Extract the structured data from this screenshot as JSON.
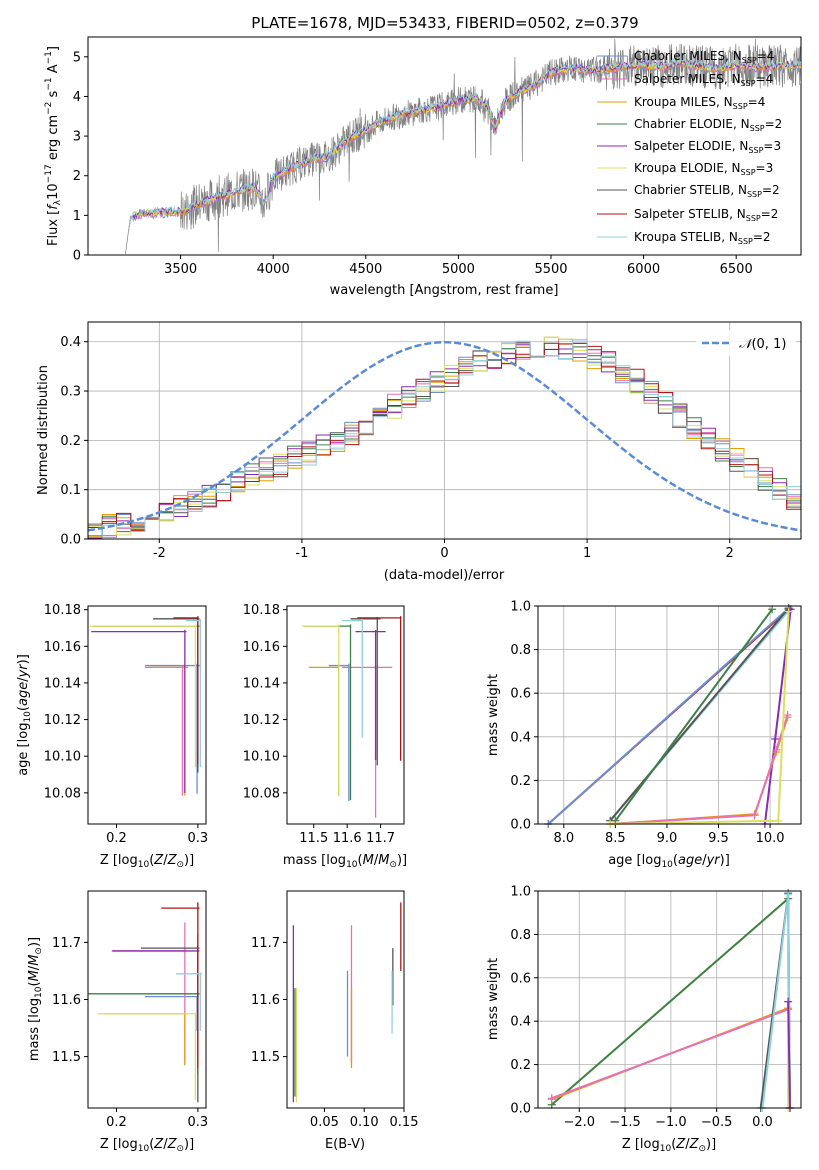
{
  "figure": {
    "title": "PLATE=1678, MJD=53433, FIBERID=0502, z=0.379"
  },
  "colors": {
    "chabrier_miles": "#6c8fd0",
    "salpeter_miles": "#e86fb5",
    "kroupa_miles": "#e0a000",
    "chabrier_elodie": "#3f7f4a",
    "salpeter_elodie": "#8b2bb0",
    "kroupa_elodie": "#d8e060",
    "chabrier_stelib": "#555555",
    "salpeter_stelib": "#b01515",
    "kroupa_stelib": "#8fd0dc",
    "normal_curve": "#5b8bd8",
    "grid": "#b0b0b0"
  },
  "chart_data": [
    {
      "id": "spectrum",
      "type": "line",
      "xlabel": "wavelength [Angstrom, rest frame]",
      "ylabel": "Flux [f_λ 10^-17 erg cm^-2 s^-1 A^-1]",
      "xlim": [
        3000,
        6850
      ],
      "ylim": [
        0,
        5.5
      ],
      "xticks": [
        3500,
        4000,
        4500,
        5000,
        5500,
        6000,
        6500
      ],
      "yticks": [
        0,
        1,
        2,
        3,
        4,
        5
      ],
      "grid": false,
      "legend": "top-right",
      "legend_entries": [
        "Chabrier MILES, N_SSP=4",
        "Salpeter MILES, N_SSP=4",
        "Kroupa MILES, N_SSP=4",
        "Chabrier ELODIE, N_SSP=2",
        "Salpeter ELODIE, N_SSP=3",
        "Kroupa ELODIE, N_SSP=3",
        "Chabrier STELIB, N_SSP=2",
        "Salpeter STELIB, N_SSP=2",
        "Kroupa STELIB, N_SSP=2"
      ],
      "continuum_anchors": [
        [
          3200,
          0
        ],
        [
          3230,
          0.95
        ],
        [
          3300,
          1.05
        ],
        [
          3450,
          1.08
        ],
        [
          3520,
          1.1
        ],
        [
          3600,
          1.3
        ],
        [
          3700,
          1.45
        ],
        [
          3800,
          1.6
        ],
        [
          3900,
          1.7
        ],
        [
          3950,
          1.3
        ],
        [
          4000,
          1.95
        ],
        [
          4100,
          2.2
        ],
        [
          4200,
          2.4
        ],
        [
          4300,
          2.5
        ],
        [
          4400,
          2.9
        ],
        [
          4500,
          3.15
        ],
        [
          4600,
          3.4
        ],
        [
          4700,
          3.55
        ],
        [
          4800,
          3.65
        ],
        [
          4900,
          3.75
        ],
        [
          5000,
          3.9
        ],
        [
          5100,
          3.95
        ],
        [
          5150,
          3.75
        ],
        [
          5200,
          3.2
        ],
        [
          5250,
          3.85
        ],
        [
          5300,
          4.05
        ],
        [
          5400,
          4.25
        ],
        [
          5500,
          4.6
        ],
        [
          5600,
          4.7
        ],
        [
          5700,
          4.65
        ],
        [
          5800,
          4.7
        ],
        [
          5900,
          4.75
        ],
        [
          6000,
          4.8
        ],
        [
          6100,
          4.75
        ],
        [
          6200,
          4.85
        ],
        [
          6300,
          4.75
        ],
        [
          6400,
          4.7
        ],
        [
          6500,
          4.8
        ],
        [
          6600,
          4.75
        ],
        [
          6700,
          4.75
        ],
        [
          6850,
          4.8
        ]
      ]
    },
    {
      "id": "residuals",
      "type": "histogram",
      "xlabel": "(data-model)/error",
      "ylabel": "Normed distribution",
      "xlim": [
        -2.5,
        2.5
      ],
      "ylim": [
        0,
        0.44
      ],
      "xticks": [
        -2,
        -1,
        0,
        1,
        2
      ],
      "yticks": [
        0.0,
        0.1,
        0.2,
        0.3,
        0.4
      ],
      "grid": true,
      "legend": "top-right",
      "curve_label": "N(0,1)",
      "bin_width": 0.1,
      "bin_start": -2.5,
      "base_values": [
        0.02,
        0.025,
        0.03,
        0.035,
        0.045,
        0.055,
        0.065,
        0.075,
        0.085,
        0.1,
        0.115,
        0.13,
        0.14,
        0.15,
        0.165,
        0.175,
        0.19,
        0.2,
        0.215,
        0.23,
        0.25,
        0.27,
        0.285,
        0.3,
        0.315,
        0.33,
        0.345,
        0.36,
        0.37,
        0.38,
        0.385,
        0.39,
        0.39,
        0.385,
        0.38,
        0.37,
        0.355,
        0.34,
        0.32,
        0.3,
        0.275,
        0.25,
        0.225,
        0.2,
        0.18,
        0.16,
        0.14,
        0.12,
        0.1,
        0.085,
        0.07,
        0.06,
        0.05,
        0.045,
        0.04,
        0.035
      ]
    },
    {
      "id": "age_vs_Z",
      "type": "errorbar",
      "xlabel": "Z [log10(Z/Z⊙)]",
      "ylabel": "age [log10(age/yr)]",
      "xlim": [
        0.165,
        0.31
      ],
      "ylim": [
        10.063,
        10.182
      ],
      "xticks": [
        0.2,
        0.3
      ],
      "xticklabels": [
        "0.2",
        "0.3"
      ],
      "yticks": [
        10.08,
        10.1,
        10.12,
        10.14,
        10.16,
        10.18
      ],
      "grid": false,
      "points": [
        {
          "series": "chabrier_miles",
          "x": 0.299,
          "xerr": [
            0.064,
            0.004
          ],
          "y": 10.1495,
          "yerr": [
            0.07,
            0.001
          ]
        },
        {
          "series": "salpeter_miles",
          "x": 0.281,
          "xerr": [
            0.046,
            0.004
          ],
          "y": 10.1485,
          "yerr": [
            0.07,
            0.001
          ]
        },
        {
          "series": "kroupa_miles",
          "x": 0.284,
          "xerr": [
            0.044,
            0.004
          ],
          "y": 10.1485,
          "yerr": [
            0.07,
            0.001
          ]
        },
        {
          "series": "chabrier_elodie",
          "x": 0.3,
          "xerr": [
            0.13,
            0.002
          ],
          "y": 10.171,
          "yerr": [
            0.08,
            0.001
          ]
        },
        {
          "series": "salpeter_elodie",
          "x": 0.284,
          "xerr": [
            0.115,
            0.002
          ],
          "y": 10.168,
          "yerr": [
            0.088,
            0.001
          ]
        },
        {
          "series": "kroupa_elodie",
          "x": 0.297,
          "xerr": [
            0.13,
            0.003
          ],
          "y": 10.171,
          "yerr": [
            0.077,
            0.001
          ]
        },
        {
          "series": "chabrier_stelib",
          "x": 0.3,
          "xerr": [
            0.055,
            0.002
          ],
          "y": 10.175,
          "yerr": [
            0.083,
            0.001
          ]
        },
        {
          "series": "salpeter_stelib",
          "x": 0.3,
          "xerr": [
            0.03,
            0.001
          ],
          "y": 10.1755,
          "yerr": [
            0.08,
            0.001
          ]
        },
        {
          "series": "kroupa_stelib",
          "x": 0.303,
          "xerr": [
            0.018,
            0.001
          ],
          "y": 10.174,
          "yerr": [
            0.08,
            0.001
          ]
        }
      ]
    },
    {
      "id": "age_vs_mass",
      "type": "errorbar",
      "xlabel": "mass [log10(M/M⊙)]",
      "ylabel": "",
      "xlim": [
        11.42,
        11.77
      ],
      "ylim": [
        10.063,
        10.182
      ],
      "xticks": [
        11.5,
        11.6,
        11.7
      ],
      "xticklabels": [
        "11.5",
        "11.6",
        "11.7"
      ],
      "yticks": [
        10.08,
        10.1,
        10.12,
        10.14,
        10.16,
        10.18
      ],
      "grid": false,
      "points": [
        {
          "series": "chabrier_miles",
          "x": 11.605,
          "xerr": [
            0.06,
            0.002
          ],
          "y": 10.1495,
          "yerr": [
            0.074,
            0.001
          ]
        },
        {
          "series": "salpeter_miles",
          "x": 11.685,
          "xerr": [
            0.1,
            0.05
          ],
          "y": 10.1485,
          "yerr": [
            0.082,
            0.001
          ]
        },
        {
          "series": "kroupa_miles",
          "x": 11.575,
          "xerr": [
            0.09,
            0.002
          ],
          "y": 10.1485,
          "yerr": [
            0.07,
            0.001
          ]
        },
        {
          "series": "chabrier_elodie",
          "x": 11.61,
          "xerr": [
            0.14,
            0.002
          ],
          "y": 10.171,
          "yerr": [
            0.095,
            0.001
          ]
        },
        {
          "series": "salpeter_elodie",
          "x": 11.685,
          "xerr": [
            0.06,
            0.03
          ],
          "y": 10.168,
          "yerr": [
            0.07,
            0.001
          ]
        },
        {
          "series": "kroupa_elodie",
          "x": 11.575,
          "xerr": [
            0.11,
            0.002
          ],
          "y": 10.171,
          "yerr": [
            0.092,
            0.001
          ]
        },
        {
          "series": "chabrier_stelib",
          "x": 11.69,
          "xerr": [
            0.08,
            0.01
          ],
          "y": 10.175,
          "yerr": [
            0.08,
            0.001
          ]
        },
        {
          "series": "salpeter_stelib",
          "x": 11.76,
          "xerr": [
            0.13,
            0.002
          ],
          "y": 10.1755,
          "yerr": [
            0.078,
            0.001
          ]
        },
        {
          "series": "kroupa_stelib",
          "x": 11.645,
          "xerr": [
            0.06,
            0.002
          ],
          "y": 10.174,
          "yerr": [
            0.064,
            0.001
          ]
        }
      ]
    },
    {
      "id": "massweight_vs_age",
      "type": "line",
      "xlabel": "age [log10(age/yr)]",
      "ylabel": "mass weight",
      "xlim": [
        7.75,
        10.3
      ],
      "ylim": [
        0,
        1
      ],
      "xticks": [
        8.0,
        8.5,
        9.0,
        9.5,
        10.0
      ],
      "xticklabels": [
        "8.0",
        "8.5",
        "9.0",
        "9.5",
        "10.0"
      ],
      "yticks": [
        0.0,
        0.2,
        0.4,
        0.6,
        0.8,
        1.0
      ],
      "grid": true,
      "series": [
        {
          "series": "salpeter_stelib",
          "x": [
            7.85,
            10.18
          ],
          "y": [
            0.0,
            0.985
          ]
        },
        {
          "series": "chabrier_miles",
          "x": [
            7.85,
            10.18
          ],
          "y": [
            0.0,
            0.99
          ]
        },
        {
          "series": "kroupa_stelib",
          "x": [
            8.45,
            10.19
          ],
          "y": [
            0.015,
            0.985
          ]
        },
        {
          "series": "chabrier_stelib",
          "x": [
            8.45,
            10.18
          ],
          "y": [
            0.015,
            0.99
          ]
        },
        {
          "series": "chabrier_elodie",
          "x": [
            8.5,
            10.02
          ],
          "y": [
            0.015,
            0.985
          ]
        },
        {
          "series": "salpeter_elodie",
          "x": [
            9.95,
            10.05,
            10.2
          ],
          "y": [
            0.0,
            0.39,
            0.985
          ]
        },
        {
          "series": "kroupa_miles",
          "x": [
            8.45,
            9.85,
            10.06,
            10.17
          ],
          "y": [
            0.0,
            0.045,
            0.33,
            0.49
          ]
        },
        {
          "series": "salpeter_miles",
          "x": [
            8.45,
            9.85,
            10.06,
            10.17
          ],
          "y": [
            0.0,
            0.04,
            0.34,
            0.5
          ]
        },
        {
          "series": "kroupa_elodie",
          "x": [
            8.45,
            10.08,
            10.18
          ],
          "y": [
            0.0,
            0.015,
            0.975
          ]
        }
      ]
    },
    {
      "id": "mass_vs_Z",
      "type": "errorbar",
      "xlabel": "Z [log10(Z/Z⊙)]",
      "ylabel": "mass [log10(M/M⊙)]",
      "xlim": [
        0.165,
        0.31
      ],
      "ylim": [
        11.41,
        11.79
      ],
      "xticks": [
        0.2,
        0.3
      ],
      "xticklabels": [
        "0.2",
        "0.3"
      ],
      "yticks": [
        11.5,
        11.6,
        11.7
      ],
      "grid": false,
      "points": [
        {
          "series": "chabrier_miles",
          "x": 0.299,
          "xerr": [
            0.064,
            0.002
          ],
          "y": 11.605,
          "yerr": [
            0.06,
            0.001
          ]
        },
        {
          "series": "salpeter_miles",
          "x": 0.284,
          "xerr": [
            0.09,
            0.002
          ],
          "y": 11.685,
          "yerr": [
            0.2,
            0.05
          ]
        },
        {
          "series": "kroupa_miles",
          "x": 0.284,
          "xerr": [
            0.1,
            0.002
          ],
          "y": 11.575,
          "yerr": [
            0.09,
            0.002
          ]
        },
        {
          "series": "chabrier_elodie",
          "x": 0.3,
          "xerr": [
            0.14,
            0.002
          ],
          "y": 11.61,
          "yerr": [
            0.14,
            0.002
          ]
        },
        {
          "series": "salpeter_elodie",
          "x": 0.3,
          "xerr": [
            0.105,
            0.002
          ],
          "y": 11.685,
          "yerr": [
            0.06,
            0.03
          ]
        },
        {
          "series": "kroupa_elodie",
          "x": 0.297,
          "xerr": [
            0.12,
            0.002
          ],
          "y": 11.575,
          "yerr": [
            0.15,
            0.002
          ]
        },
        {
          "series": "chabrier_stelib",
          "x": 0.3,
          "xerr": [
            0.07,
            0.002
          ],
          "y": 11.69,
          "yerr": [
            0.27,
            0.002
          ]
        },
        {
          "series": "salpeter_stelib",
          "x": 0.3,
          "xerr": [
            0.045,
            0.002
          ],
          "y": 11.76,
          "yerr": [
            0.28,
            0.01
          ]
        },
        {
          "series": "kroupa_stelib",
          "x": 0.303,
          "xerr": [
            0.03,
            0.002
          ],
          "y": 11.645,
          "yerr": [
            0.1,
            0.002
          ]
        }
      ]
    },
    {
      "id": "mass_vs_ebv",
      "type": "errorbar",
      "xlabel": "E(B-V)",
      "ylabel": "",
      "xlim": [
        0.003,
        0.15
      ],
      "ylim": [
        11.41,
        11.79
      ],
      "xticks": [
        0.05,
        0.1,
        0.15
      ],
      "xticklabels": [
        "0.05",
        "0.10",
        "0.15"
      ],
      "yticks": [
        11.5,
        11.6,
        11.7
      ],
      "grid": false,
      "points": [
        {
          "series": "chabrier_miles",
          "x": 0.079,
          "xerr": [
            0,
            0
          ],
          "y": 11.58,
          "yerr": [
            0.08,
            0.07
          ]
        },
        {
          "series": "salpeter_miles",
          "x": 0.084,
          "xerr": [
            0,
            0
          ],
          "y": 11.63,
          "yerr": [
            0.14,
            0.1
          ]
        },
        {
          "series": "kroupa_miles",
          "x": 0.084,
          "xerr": [
            0,
            0
          ],
          "y": 11.55,
          "yerr": [
            0.07,
            0.07
          ]
        },
        {
          "series": "chabrier_elodie",
          "x": 0.013,
          "xerr": [
            0,
            0
          ],
          "y": 11.58,
          "yerr": [
            0.15,
            0.04
          ]
        },
        {
          "series": "salpeter_elodie",
          "x": 0.011,
          "xerr": [
            0,
            0
          ],
          "y": 11.6,
          "yerr": [
            0.18,
            0.13
          ]
        },
        {
          "series": "kroupa_elodie",
          "x": 0.015,
          "xerr": [
            0,
            0
          ],
          "y": 11.52,
          "yerr": [
            0.1,
            0.1
          ]
        },
        {
          "series": "chabrier_stelib",
          "x": 0.136,
          "xerr": [
            0,
            0
          ],
          "y": 11.64,
          "yerr": [
            0.05,
            0.05
          ]
        },
        {
          "series": "salpeter_stelib",
          "x": 0.146,
          "xerr": [
            0,
            0
          ],
          "y": 11.71,
          "yerr": [
            0.06,
            0.06
          ]
        },
        {
          "series": "kroupa_stelib",
          "x": 0.135,
          "xerr": [
            0,
            0
          ],
          "y": 11.6,
          "yerr": [
            0.06,
            0.05
          ]
        }
      ]
    },
    {
      "id": "massweight_vs_Z",
      "type": "line",
      "xlabel": "Z [log10(Z/Z⊙)]",
      "ylabel": "mass weight",
      "xlim": [
        -2.45,
        0.42
      ],
      "ylim": [
        0,
        1
      ],
      "xticks": [
        -2.0,
        -1.5,
        -1.0,
        -0.5,
        0.0
      ],
      "xticklabels": [
        "−2.0",
        "−1.5",
        "−1.0",
        "−0.5",
        "0.0"
      ],
      "yticks": [
        0.0,
        0.2,
        0.4,
        0.6,
        0.8,
        1.0
      ],
      "grid": true,
      "series": [
        {
          "series": "kroupa_elodie",
          "x": [
            -2.3,
            0.28,
            0.28
          ],
          "y": [
            0.015,
            0.965,
            0.0
          ]
        },
        {
          "series": "chabrier_elodie",
          "x": [
            -2.3,
            0.28
          ],
          "y": [
            0.015,
            0.965
          ]
        },
        {
          "series": "kroupa_miles",
          "x": [
            -2.3,
            0.28
          ],
          "y": [
            0.04,
            0.46
          ]
        },
        {
          "series": "salpeter_miles",
          "x": [
            -2.3,
            0.28
          ],
          "y": [
            0.045,
            0.455
          ]
        },
        {
          "series": "chabrier_stelib",
          "x": [
            -0.02,
            0.28,
            0.3
          ],
          "y": [
            0.0,
            0.99,
            0.0
          ]
        },
        {
          "series": "kroupa_stelib",
          "x": [
            0.0,
            0.28,
            0.3
          ],
          "y": [
            0.0,
            0.985,
            0.0
          ]
        },
        {
          "series": "salpeter_elodie",
          "x": [
            0.28,
            0.3
          ],
          "y": [
            0.49,
            0.0
          ]
        }
      ]
    }
  ]
}
